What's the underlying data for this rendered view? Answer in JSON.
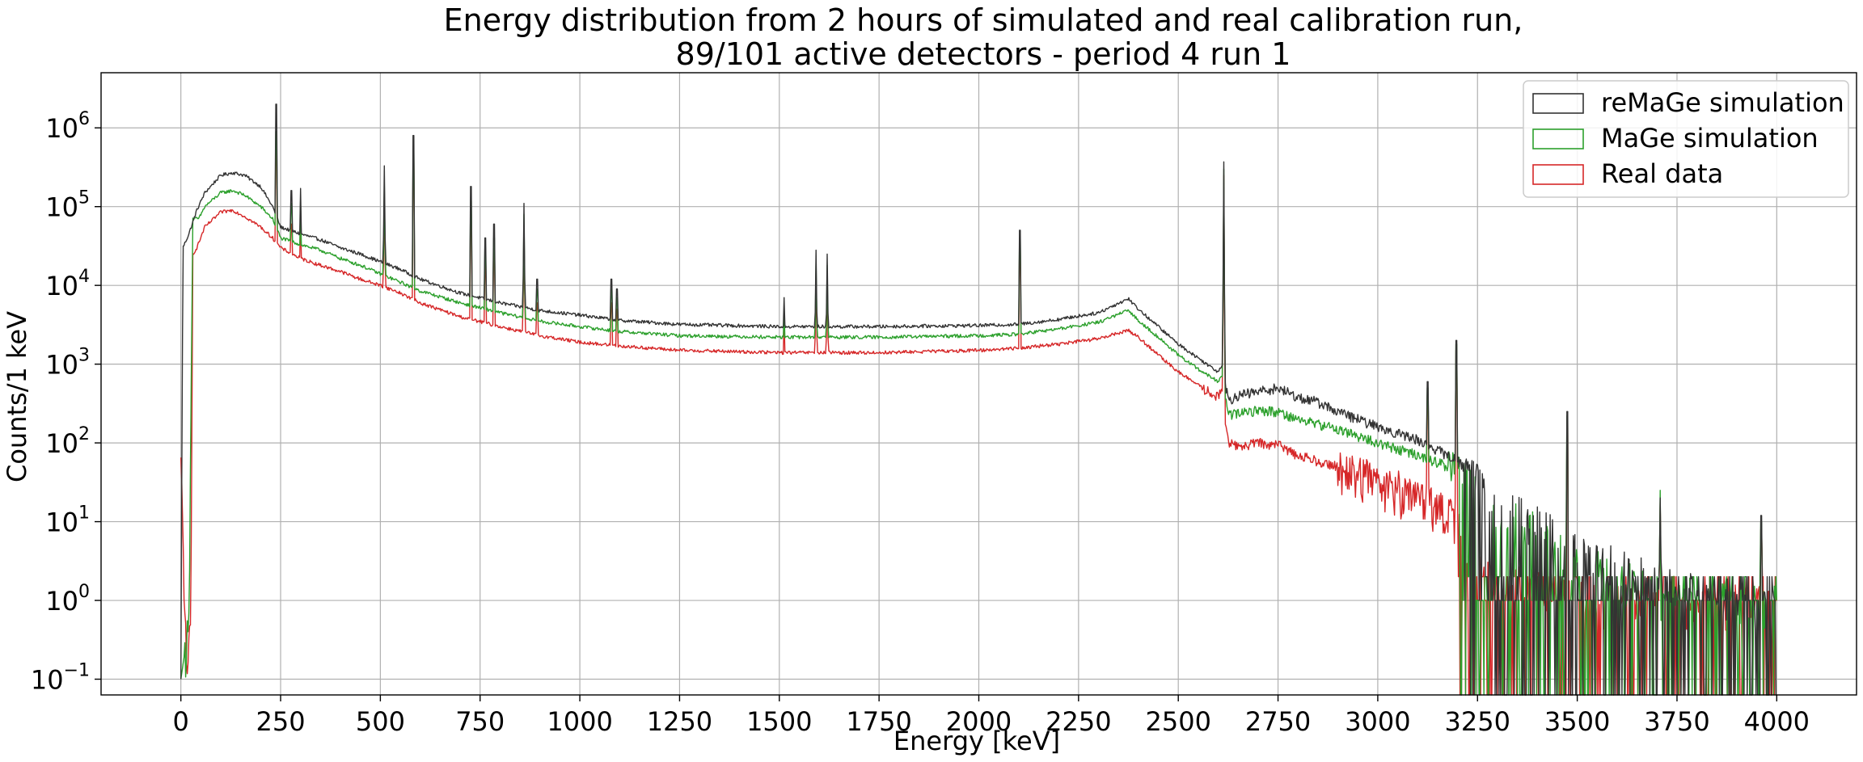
{
  "chart_data": {
    "type": "line",
    "title": "Energy distribution from 2 hours of simulated and real calibration run,",
    "subtitle": "89/101 active detectors - period 4 run 1",
    "xlabel": "Energy [keV]",
    "ylabel": "Counts/1 keV",
    "xlim": [
      -200,
      4200
    ],
    "ylim_log10": [
      -1.2,
      6.7
    ],
    "y_scale": "log",
    "grid": true,
    "legend_position": "top-right",
    "x_ticks": [
      0,
      250,
      500,
      750,
      1000,
      1250,
      1500,
      1750,
      2000,
      2250,
      2500,
      2750,
      3000,
      3250,
      3500,
      3750,
      4000
    ],
    "x_tick_labels": [
      "0",
      "250",
      "500",
      "750",
      "1000",
      "1250",
      "1500",
      "1750",
      "2000",
      "2250",
      "2500",
      "2750",
      "3000",
      "3250",
      "3500",
      "3750",
      "4000"
    ],
    "y_ticks_log10": [
      -1,
      0,
      1,
      2,
      3,
      4,
      5,
      6
    ],
    "y_tick_labels": [
      {
        "base": "10",
        "exp": "−1"
      },
      {
        "base": "10",
        "exp": "0"
      },
      {
        "base": "10",
        "exp": "1"
      },
      {
        "base": "10",
        "exp": "2"
      },
      {
        "base": "10",
        "exp": "3"
      },
      {
        "base": "10",
        "exp": "4"
      },
      {
        "base": "10",
        "exp": "5"
      },
      {
        "base": "10",
        "exp": "6"
      }
    ],
    "peaks": [
      {
        "e": 239,
        "reMaGe": 2000000,
        "MaGe": 900000,
        "Real": 600000
      },
      {
        "e": 277,
        "reMaGe": 160000,
        "MaGe": 110000,
        "Real": 60000
      },
      {
        "e": 300,
        "reMaGe": 170000,
        "MaGe": 120000,
        "Real": 80000
      },
      {
        "e": 510,
        "reMaGe": 330000,
        "MaGe": 200000,
        "Real": 150000
      },
      {
        "e": 583,
        "reMaGe": 800000,
        "MaGe": 500000,
        "Real": 400000
      },
      {
        "e": 727,
        "reMaGe": 180000,
        "MaGe": 120000,
        "Real": 80000
      },
      {
        "e": 763,
        "reMaGe": 40000,
        "MaGe": 30000,
        "Real": 20000
      },
      {
        "e": 785,
        "reMaGe": 60000,
        "MaGe": 40000,
        "Real": 30000
      },
      {
        "e": 860,
        "reMaGe": 110000,
        "MaGe": 80000,
        "Real": 60000
      },
      {
        "e": 893,
        "reMaGe": 12000,
        "MaGe": 9000,
        "Real": 6000
      },
      {
        "e": 1079,
        "reMaGe": 12000,
        "MaGe": 9000,
        "Real": 6000
      },
      {
        "e": 1093,
        "reMaGe": 9000,
        "MaGe": 7000,
        "Real": 5000
      },
      {
        "e": 1512,
        "reMaGe": 7000,
        "MaGe": 5000,
        "Real": 4000
      },
      {
        "e": 1592,
        "reMaGe": 28000,
        "MaGe": 20000,
        "Real": 15000
      },
      {
        "e": 1620,
        "reMaGe": 25000,
        "MaGe": 18000,
        "Real": 13000
      },
      {
        "e": 2103,
        "reMaGe": 50000,
        "MaGe": 40000,
        "Real": 30000
      },
      {
        "e": 2614,
        "reMaGe": 370000,
        "MaGe": 300000,
        "Real": 250000
      },
      {
        "e": 3125,
        "reMaGe": 600,
        "MaGe": 500,
        "Real": 400
      },
      {
        "e": 3197,
        "reMaGe": 2000,
        "MaGe": 1800,
        "Real": 1500
      },
      {
        "e": 3475,
        "reMaGe": 250,
        "MaGe": 220,
        "Real": 180
      },
      {
        "e": 3708,
        "reMaGe": 20,
        "MaGe": 25,
        "Real": 18
      },
      {
        "e": 3961,
        "reMaGe": 12,
        "MaGe": 10,
        "Real": 8
      }
    ],
    "series": [
      {
        "name": "reMaGe simulation",
        "color": "#333333",
        "x": [
          0,
          5,
          20,
          40,
          60,
          100,
          130,
          160,
          200,
          230,
          250,
          300,
          350,
          400,
          450,
          500,
          550,
          600,
          700,
          800,
          900,
          1000,
          1100,
          1250,
          1500,
          1750,
          2000,
          2100,
          2200,
          2300,
          2375,
          2400,
          2450,
          2500,
          2560,
          2600,
          2610,
          2625,
          2650,
          2700,
          2750,
          2800,
          2850,
          2900,
          3000,
          3100,
          3200,
          3250,
          3300,
          3400,
          3500,
          3600,
          3700,
          3800,
          3900,
          3980
        ],
        "y": [
          0.1,
          30000,
          45000,
          90000,
          150000,
          250000,
          270000,
          250000,
          180000,
          100000,
          55000,
          45000,
          38000,
          30000,
          25000,
          20000,
          16000,
          12000,
          8000,
          6000,
          4800,
          4200,
          3600,
          3200,
          3000,
          3000,
          3100,
          3200,
          3700,
          4500,
          6800,
          5000,
          3000,
          1800,
          1100,
          800,
          1000,
          350,
          400,
          450,
          500,
          380,
          330,
          250,
          160,
          110,
          60,
          35,
          20,
          10,
          5,
          3,
          2,
          1.5,
          1.2,
          1
        ]
      },
      {
        "name": "MaGe simulation",
        "color": "#2ca02c",
        "x": [
          0,
          20,
          30,
          45,
          60,
          100,
          130,
          160,
          200,
          230,
          250,
          300,
          350,
          400,
          450,
          500,
          550,
          600,
          700,
          800,
          900,
          1000,
          1100,
          1250,
          1500,
          1750,
          2000,
          2100,
          2200,
          2300,
          2375,
          2400,
          2450,
          2500,
          2560,
          2600,
          2610,
          2625,
          2650,
          2700,
          2750,
          2800,
          2900,
          3000,
          3100,
          3200,
          3250,
          3300,
          3400,
          3500,
          3600,
          3700,
          3800,
          3900
        ],
        "y": [
          0.1,
          0.5,
          70000,
          70000,
          100000,
          150000,
          160000,
          140000,
          100000,
          70000,
          40000,
          33000,
          28000,
          22000,
          18000,
          14000,
          11000,
          8500,
          6000,
          4500,
          3500,
          3000,
          2600,
          2300,
          2200,
          2200,
          2300,
          2400,
          2800,
          3400,
          4800,
          3600,
          2200,
          1300,
          800,
          600,
          700,
          220,
          240,
          260,
          250,
          200,
          150,
          100,
          70,
          45,
          25,
          14,
          8,
          4,
          2,
          1.5,
          1.2,
          1
        ]
      },
      {
        "name": "Real data",
        "color": "#d62728",
        "x": [
          0,
          15,
          25,
          30,
          40,
          60,
          100,
          130,
          160,
          200,
          230,
          250,
          300,
          350,
          400,
          450,
          500,
          550,
          600,
          700,
          800,
          900,
          1000,
          1100,
          1250,
          1500,
          1750,
          2000,
          2100,
          2200,
          2300,
          2375,
          2400,
          2450,
          2500,
          2560,
          2600,
          2610,
          2625,
          2650,
          2700,
          2750,
          2800,
          2900,
          3000,
          3100,
          3150,
          3200,
          3210,
          3250,
          3300,
          3400,
          3500,
          3600,
          3700,
          3800,
          3900,
          3990
        ],
        "y": [
          60,
          0.1,
          0.5,
          25000,
          30000,
          55000,
          85000,
          90000,
          75000,
          55000,
          40000,
          30000,
          22000,
          18000,
          15000,
          12000,
          10000,
          8000,
          6000,
          4000,
          3000,
          2300,
          1900,
          1700,
          1500,
          1400,
          1400,
          1500,
          1600,
          1800,
          2100,
          2700,
          2200,
          1300,
          800,
          500,
          380,
          450,
          100,
          90,
          100,
          95,
          70,
          50,
          35,
          22,
          15,
          12,
          5,
          3,
          2,
          1.5,
          1.2,
          1,
          1,
          1,
          1,
          1
        ]
      }
    ]
  }
}
